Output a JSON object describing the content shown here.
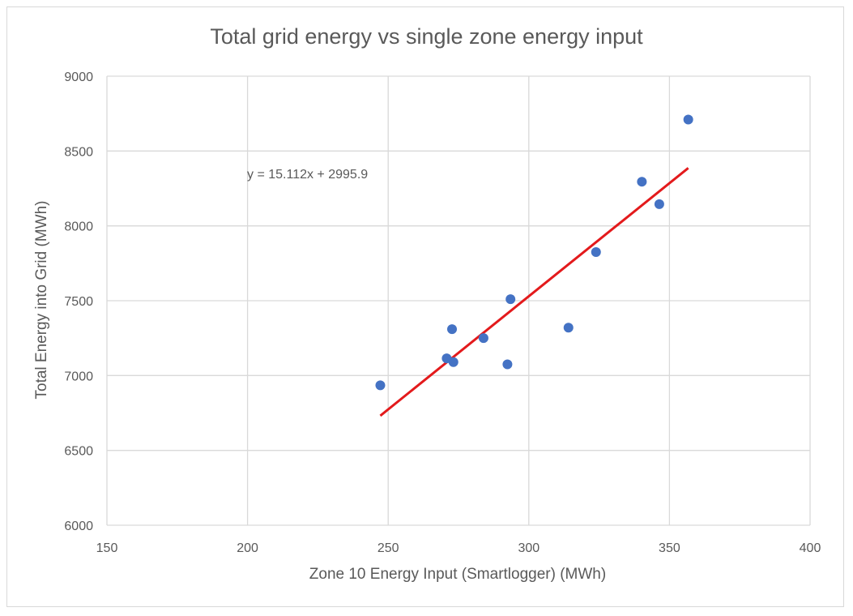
{
  "chart_data": {
    "type": "scatter",
    "title": "Total grid energy vs single zone energy input",
    "xlabel": "Zone 10 Energy Input (Smartlogger) (MWh)",
    "ylabel": "Total Energy into Grid (MWh)",
    "xlim": [
      150,
      400
    ],
    "ylim": [
      6000,
      9000
    ],
    "x_ticks": [
      "150",
      "200",
      "250",
      "300",
      "350",
      "400"
    ],
    "y_ticks": [
      "6000",
      "6500",
      "7000",
      "7500",
      "8000",
      "8500",
      "9000"
    ],
    "grid": true,
    "legend": "none",
    "series": [
      {
        "color": "#4472c4",
        "points": [
          {
            "x": 247.2,
            "y": 6935
          },
          {
            "x": 270.8,
            "y": 7115
          },
          {
            "x": 272.7,
            "y": 7310
          },
          {
            "x": 273.2,
            "y": 7090
          },
          {
            "x": 283.9,
            "y": 7250
          },
          {
            "x": 292.4,
            "y": 7075
          },
          {
            "x": 293.5,
            "y": 7510
          },
          {
            "x": 314.1,
            "y": 7320
          },
          {
            "x": 323.9,
            "y": 7825
          },
          {
            "x": 340.2,
            "y": 8295
          },
          {
            "x": 346.4,
            "y": 8145
          },
          {
            "x": 356.7,
            "y": 8710
          }
        ]
      }
    ],
    "trendline": {
      "color": "#e31a1c",
      "slope": 15.112,
      "intercept": 2995.9,
      "x_range": [
        247.2,
        356.7
      ],
      "equation_label": "y = 15.112x + 2995.9"
    }
  }
}
